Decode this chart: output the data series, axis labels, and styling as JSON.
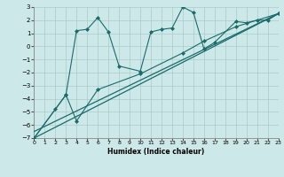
{
  "bg_color": "#cce8e8",
  "grid_color": "#aacccc",
  "line_color": "#1a6b6b",
  "xlabel": "Humidex (Indice chaleur)",
  "xlim": [
    0,
    23
  ],
  "ylim": [
    -7,
    3
  ],
  "xticks": [
    0,
    1,
    2,
    3,
    4,
    5,
    6,
    7,
    8,
    9,
    10,
    11,
    12,
    13,
    14,
    15,
    16,
    17,
    18,
    19,
    20,
    21,
    22,
    23
  ],
  "yticks": [
    -7,
    -6,
    -5,
    -4,
    -3,
    -2,
    -1,
    0,
    1,
    2,
    3
  ],
  "line1_x": [
    0,
    2,
    3,
    4,
    5,
    6,
    7,
    8,
    10,
    11,
    12,
    13,
    14,
    15,
    16,
    17,
    19,
    20,
    21,
    22,
    23
  ],
  "line1_y": [
    -7,
    -4.8,
    -3.7,
    1.2,
    1.3,
    2.2,
    1.1,
    -1.5,
    -1.9,
    1.1,
    1.3,
    1.4,
    3.0,
    2.6,
    -0.2,
    0.3,
    1.9,
    1.8,
    2.0,
    2.0,
    2.5
  ],
  "line2_x": [
    0,
    3,
    4,
    6,
    10,
    14,
    16,
    19,
    23
  ],
  "line2_y": [
    -7,
    -3.7,
    -5.7,
    -3.3,
    -2.1,
    -0.5,
    0.4,
    1.5,
    2.5
  ],
  "line3_x": [
    0,
    23
  ],
  "line3_y": [
    -7,
    2.5
  ],
  "line4_x": [
    0,
    23
  ],
  "line4_y": [
    -6.5,
    2.5
  ]
}
